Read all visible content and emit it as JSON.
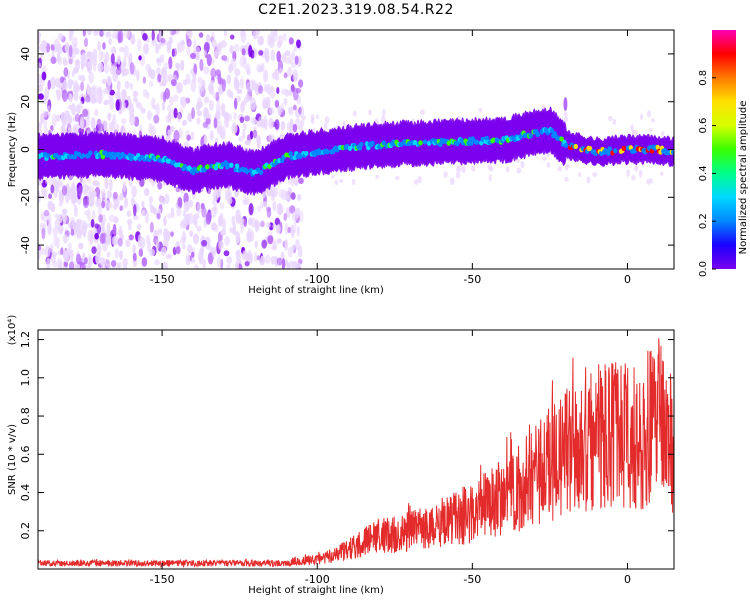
{
  "title": "C2E1.2023.319.08.54.R22",
  "colors": {
    "spectrum_cmap": [
      "#ffffff",
      "#e9d6ff",
      "#b86bff",
      "#7a00ee",
      "#1a00ff",
      "#0087ff",
      "#00d8ff",
      "#00ff8a",
      "#38ff00",
      "#d6ff00",
      "#ffe000",
      "#ff7a00",
      "#ff0000",
      "#ff00b4"
    ],
    "snr_line": "#e42b2b"
  },
  "chart_data": [
    {
      "type": "heatmap",
      "title": "C2E1.2023.319.08.54.R22",
      "xlabel": "Height of straight line (km)",
      "ylabel": "Frequency (Hz)",
      "xlim": [
        -190,
        15
      ],
      "ylim": [
        -50,
        50
      ],
      "xticks": [
        -150,
        -100,
        -50,
        0
      ],
      "xtick_labels": [
        "-150",
        "-100",
        "-50",
        "0"
      ],
      "yticks": [
        -40,
        -20,
        0,
        20,
        40
      ],
      "ytick_labels": [
        "-40",
        "-20",
        "0",
        "20",
        "40"
      ],
      "grid": false,
      "signal_track": {
        "description_points_height_km": [
          -190,
          -170,
          -150,
          -140,
          -130,
          -120,
          -110,
          -100,
          -80,
          -60,
          -40,
          -30,
          -25,
          -20,
          -10,
          0,
          10,
          15
        ],
        "center_frequency_hz": [
          -3,
          -2,
          -4,
          -9,
          -6,
          -10,
          -3,
          -1,
          2,
          3,
          4,
          7,
          8,
          2,
          -1,
          0,
          0,
          -1
        ]
      },
      "colorbar": {
        "label": "Normalized spectral amplitude",
        "ticks": [
          0.0,
          0.2,
          0.4,
          0.6,
          0.8
        ],
        "tick_labels": [
          "0.0",
          "0.2",
          "0.4",
          "0.6",
          "0.8"
        ],
        "range": [
          0,
          1
        ]
      }
    },
    {
      "type": "line",
      "xlabel": "Height of straight line (km)",
      "ylabel": "SNR (10 * v/v)",
      "yscale_label": "(x10⁴)",
      "xlim": [
        -190,
        15
      ],
      "ylim": [
        0,
        1.25
      ],
      "xticks": [
        -150,
        -100,
        -50,
        0
      ],
      "xtick_labels": [
        "-150",
        "-100",
        "-50",
        "0"
      ],
      "yticks": [
        0.2,
        0.4,
        0.6,
        0.8,
        1.0,
        1.2
      ],
      "ytick_labels": [
        "0.2",
        "0.4",
        "0.6",
        "0.8",
        "1.0",
        "1.2"
      ],
      "grid": false,
      "series": [
        {
          "x": [
            -190,
            -170,
            -150,
            -130,
            -110,
            -100,
            -95,
            -90,
            -85,
            -80,
            -75,
            -70,
            -65,
            -60,
            -55,
            -50,
            -45,
            -40,
            -35,
            -33,
            -30,
            -25,
            -20,
            -15,
            -10,
            -5,
            0,
            5,
            10,
            15
          ],
          "y": [
            0.03,
            0.03,
            0.03,
            0.03,
            0.03,
            0.05,
            0.07,
            0.1,
            0.14,
            0.17,
            0.18,
            0.2,
            0.22,
            0.24,
            0.27,
            0.3,
            0.33,
            0.38,
            0.42,
            0.5,
            0.48,
            0.55,
            0.6,
            0.63,
            0.7,
            0.72,
            0.7,
            0.68,
            0.8,
            0.62
          ]
        }
      ]
    }
  ]
}
